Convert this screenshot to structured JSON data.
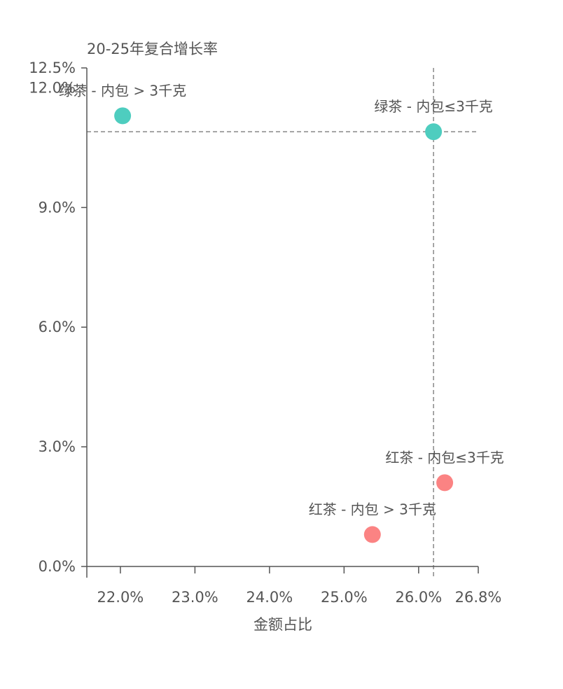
{
  "chart_data": {
    "type": "scatter",
    "ylabel": "20-25年复合增长率",
    "xlabel": "金额占比",
    "xlim": [
      21.55,
      26.8
    ],
    "ylim": [
      0.0,
      12.5
    ],
    "x_ticks": [
      {
        "value": 22.0,
        "label": "22.0%"
      },
      {
        "value": 23.0,
        "label": "23.0%"
      },
      {
        "value": 24.0,
        "label": "24.0%"
      },
      {
        "value": 25.0,
        "label": "25.0%"
      },
      {
        "value": 26.0,
        "label": "26.0%"
      },
      {
        "value": 26.8,
        "label": "26.8%"
      }
    ],
    "y_ticks": [
      {
        "value": 0.0,
        "label": "0.0%"
      },
      {
        "value": 3.0,
        "label": "3.0%"
      },
      {
        "value": 6.0,
        "label": "6.0%"
      },
      {
        "value": 9.0,
        "label": "9.0%"
      },
      {
        "value": 12.0,
        "label": "12.0%"
      },
      {
        "value": 12.5,
        "label": "12.5%"
      }
    ],
    "reference_lines": {
      "x": 26.2,
      "y": 10.9
    },
    "colors": {
      "green": "#4ecdbf",
      "red": "#fb8383"
    },
    "points": [
      {
        "label": "绿茶 - 内包 > 3千克",
        "x": 22.03,
        "y": 11.3,
        "color": "green"
      },
      {
        "label": "绿茶 - 内包≤3千克",
        "x": 26.2,
        "y": 10.9,
        "color": "green"
      },
      {
        "label": "红茶 - 内包≤3千克",
        "x": 26.35,
        "y": 2.1,
        "color": "red"
      },
      {
        "label": "红茶 - 内包 > 3千克",
        "x": 25.38,
        "y": 0.8,
        "color": "red"
      }
    ]
  }
}
